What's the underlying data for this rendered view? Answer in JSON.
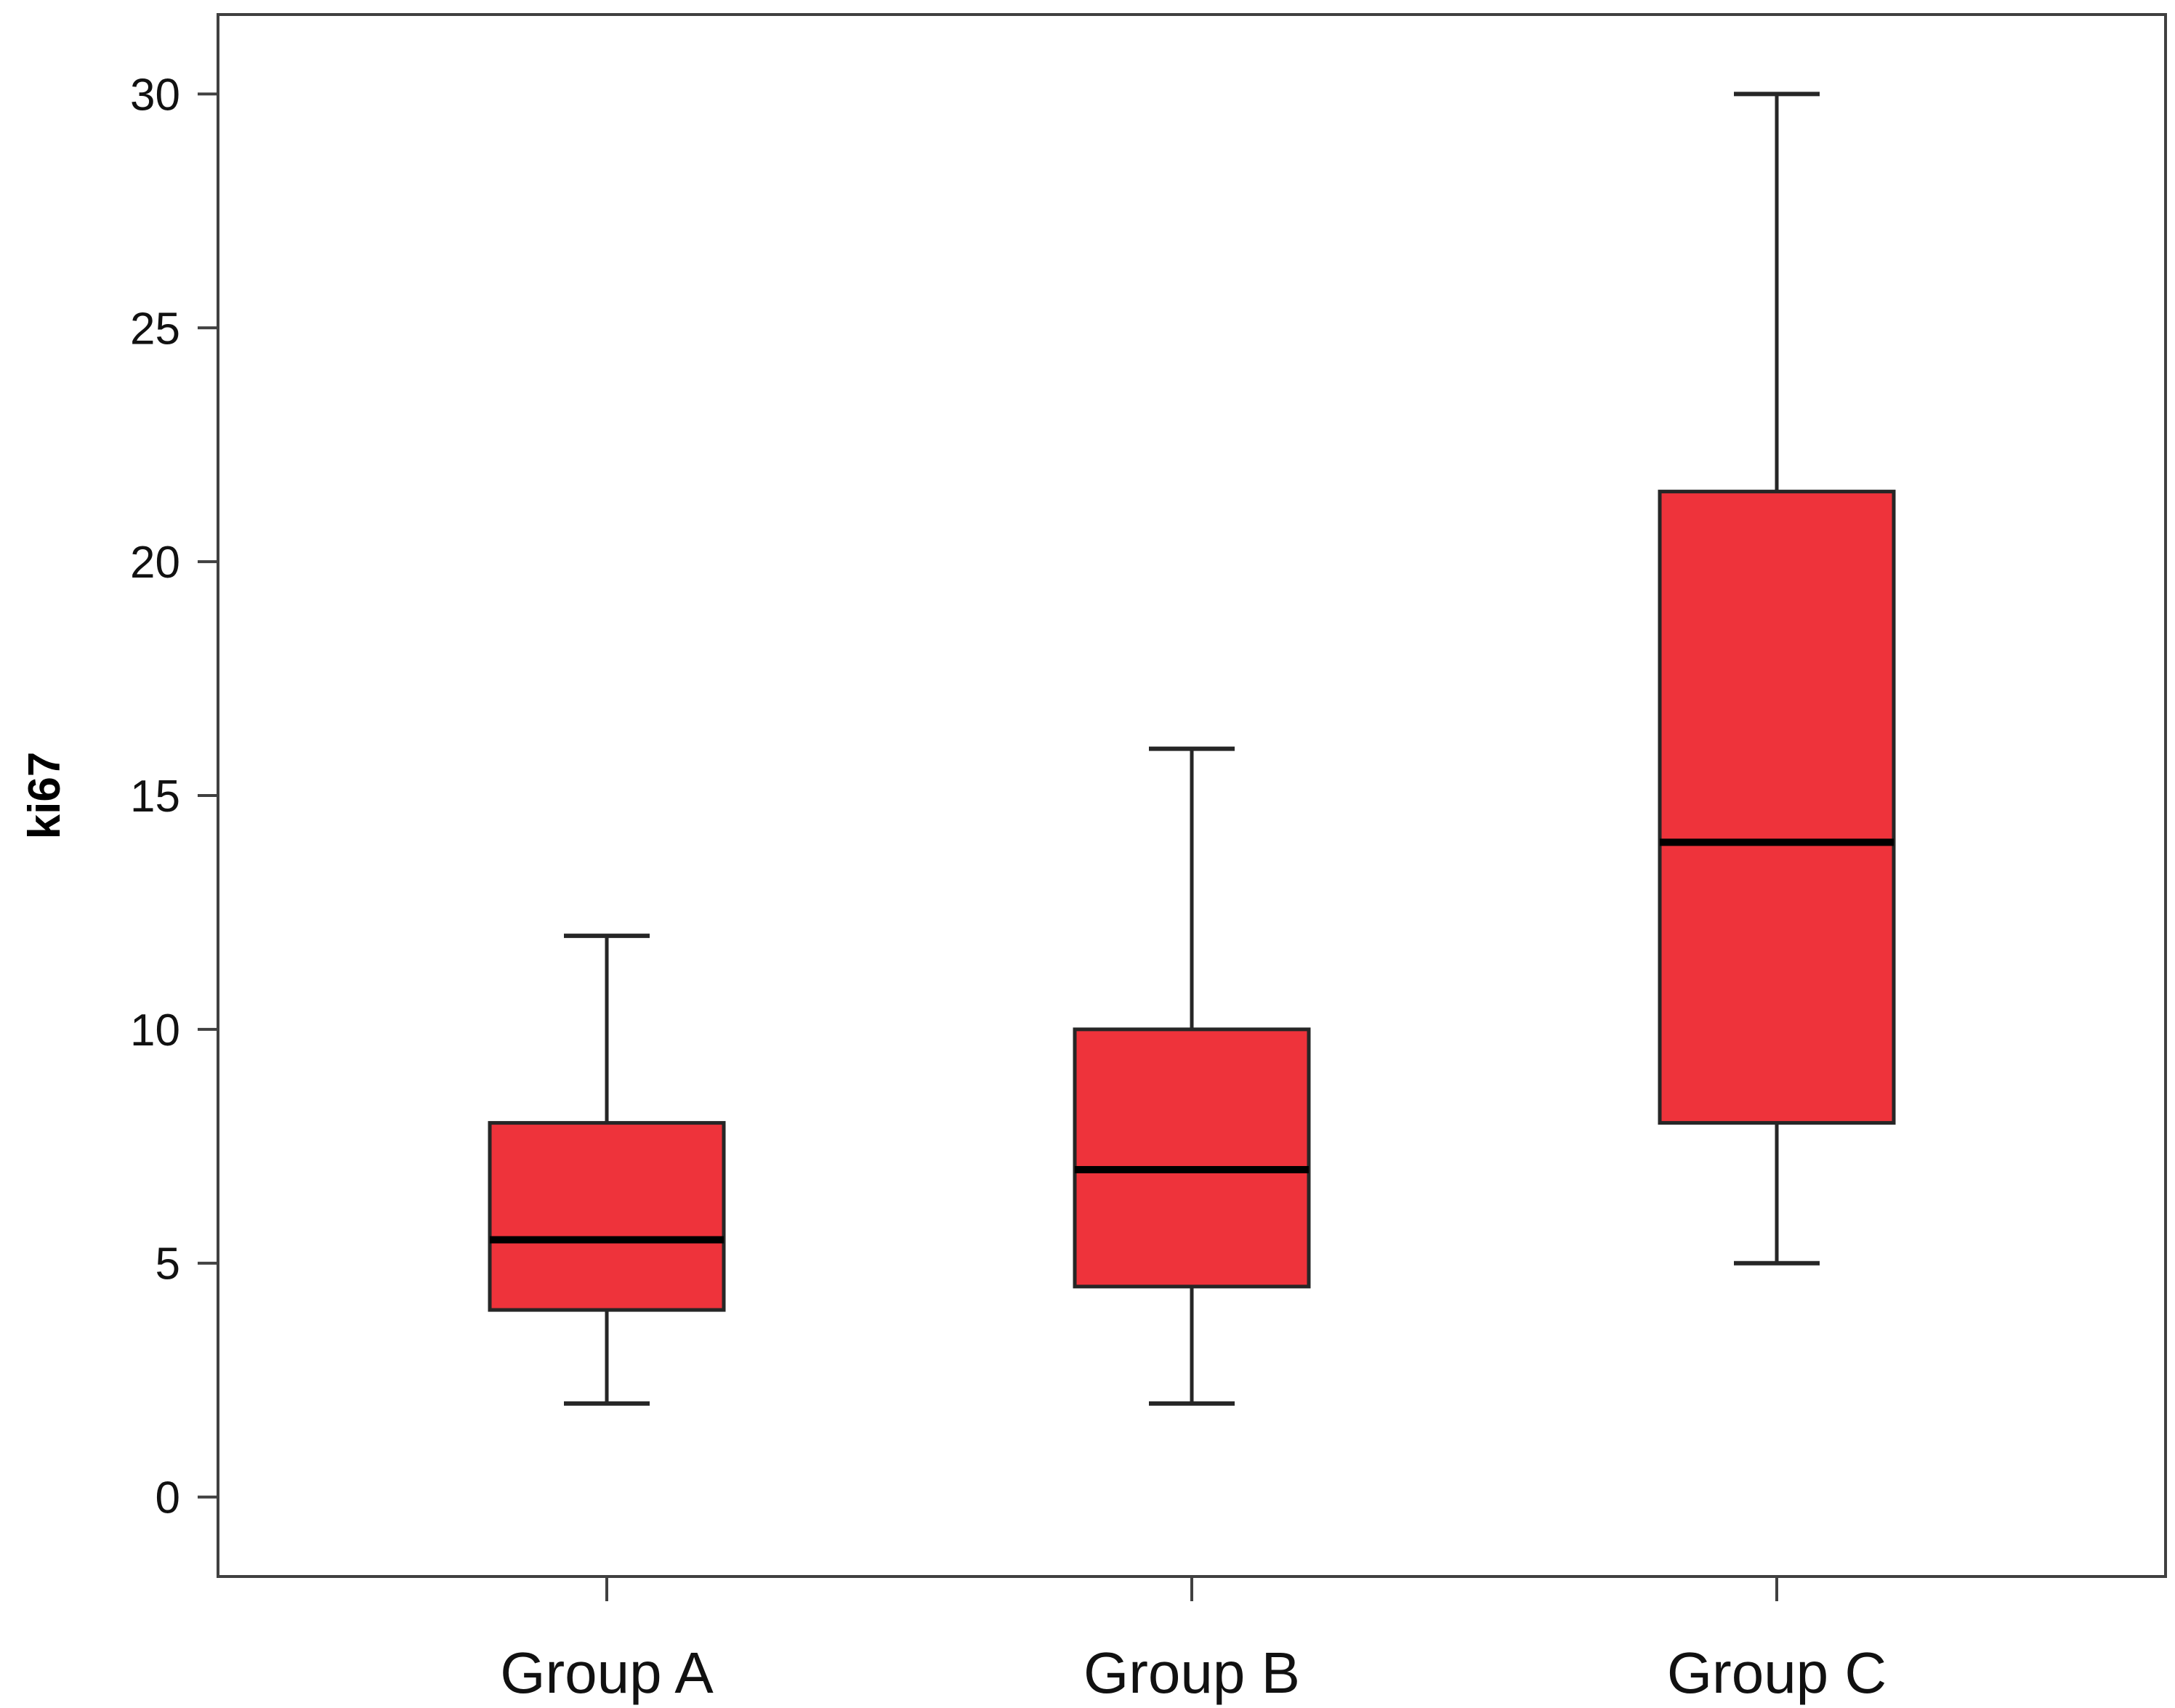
{
  "chart_data": {
    "type": "boxplot",
    "title": "",
    "xlabel": "",
    "ylabel": "ki67",
    "ylim": [
      -1.7,
      31.7
    ],
    "yticks": [
      0,
      5,
      10,
      15,
      20,
      25,
      30
    ],
    "ytick_labels": [
      "0",
      "5",
      "10",
      "15",
      "20",
      "25",
      "30"
    ],
    "grid": false,
    "legend": "none",
    "categories": [
      "Group A",
      "Group B",
      "Group C"
    ],
    "boxes": [
      {
        "name": "Group A",
        "whisker_low": 2,
        "q1": 4,
        "median": 5.5,
        "q3": 8,
        "whisker_high": 12
      },
      {
        "name": "Group B",
        "whisker_low": 2,
        "q1": 4.5,
        "median": 7,
        "q3": 10,
        "whisker_high": 16
      },
      {
        "name": "Group C",
        "whisker_low": 5,
        "q1": 8,
        "median": 14,
        "q3": 21.5,
        "whisker_high": 30
      }
    ],
    "colors": {
      "box_fill": "#ee333b",
      "box_edge": "#262626",
      "median_line": "#000000",
      "whisker": "#262626",
      "frame": "#404040"
    }
  }
}
